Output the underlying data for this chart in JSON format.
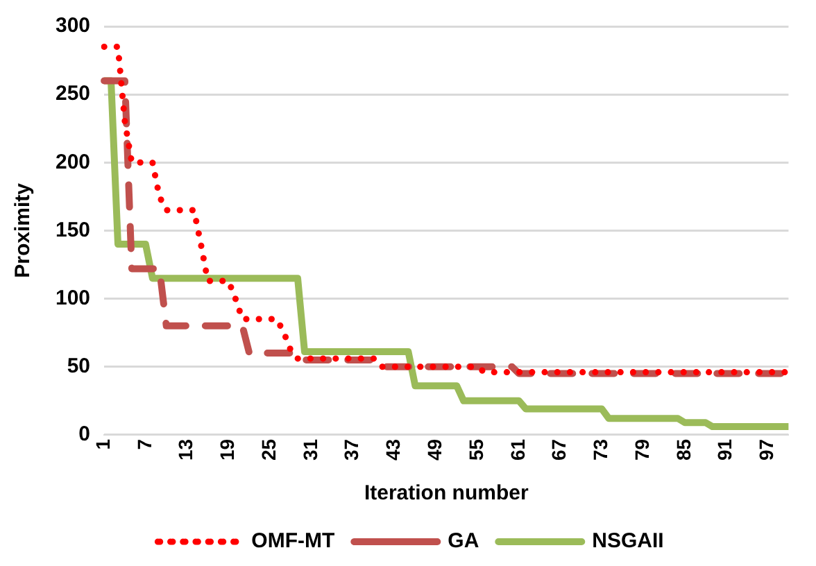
{
  "chart_data": {
    "type": "line",
    "xlabel": "Iteration number",
    "ylabel": "Proximity",
    "categories": [
      "1",
      null,
      null,
      null,
      null,
      null,
      "7",
      null,
      null,
      null,
      null,
      null,
      "13",
      null,
      null,
      null,
      null,
      null,
      "19",
      null,
      null,
      null,
      null,
      null,
      "25",
      null,
      null,
      null,
      null,
      null,
      "31",
      null,
      null,
      null,
      null,
      null,
      "37",
      null,
      null,
      null,
      null,
      null,
      "43",
      null,
      null,
      null,
      null,
      null,
      "49",
      null,
      null,
      null,
      null,
      null,
      "55",
      null,
      null,
      null,
      null,
      null,
      "61",
      null,
      null,
      null,
      null,
      null,
      "67",
      null,
      null,
      null,
      null,
      null,
      "73",
      null,
      null,
      null,
      null,
      null,
      "79",
      null,
      null,
      null,
      null,
      null,
      "85",
      null,
      null,
      null,
      null,
      null,
      "91",
      null,
      null,
      null,
      null,
      null,
      "97",
      null,
      null,
      null
    ],
    "series": [
      {
        "name": "OMF-MT",
        "color": "#ff0000",
        "line_style": "dotted",
        "values": [
          285,
          285,
          285,
          230,
          200,
          200,
          200,
          200,
          175,
          165,
          165,
          165,
          165,
          165,
          140,
          113,
          113,
          113,
          113,
          100,
          85,
          85,
          85,
          85,
          85,
          85,
          75,
          62,
          56,
          56,
          56,
          56,
          56,
          56,
          56,
          56,
          56,
          56,
          56,
          56,
          50,
          50,
          50,
          50,
          50,
          50,
          50,
          50,
          50,
          50,
          50,
          50,
          50,
          50,
          50,
          46,
          46,
          46,
          46,
          46,
          46,
          46,
          46,
          46,
          46,
          46,
          46,
          46,
          46,
          46,
          46,
          46,
          46,
          46,
          46,
          46,
          46,
          46,
          46,
          46,
          46,
          46,
          46,
          46,
          46,
          46,
          46,
          46,
          46,
          46,
          46,
          46,
          46,
          46,
          46,
          46,
          46,
          46,
          46,
          46
        ]
      },
      {
        "name": "GA",
        "color": "#c0504d",
        "line_style": "dashed",
        "values": [
          260,
          260,
          260,
          260,
          122,
          122,
          122,
          122,
          122,
          80,
          80,
          80,
          80,
          80,
          80,
          80,
          80,
          80,
          80,
          80,
          80,
          60,
          60,
          60,
          60,
          60,
          60,
          60,
          55,
          55,
          55,
          55,
          55,
          55,
          55,
          55,
          55,
          55,
          55,
          55,
          50,
          50,
          50,
          50,
          50,
          50,
          50,
          50,
          50,
          50,
          50,
          50,
          50,
          50,
          50,
          50,
          50,
          50,
          50,
          50,
          45,
          45,
          45,
          45,
          45,
          45,
          45,
          45,
          45,
          45,
          45,
          45,
          45,
          45,
          45,
          45,
          45,
          45,
          45,
          45,
          45,
          45,
          45,
          45,
          45,
          45,
          45,
          45,
          45,
          45,
          45,
          45,
          45,
          45,
          45,
          45,
          45,
          45,
          45,
          45
        ]
      },
      {
        "name": "NSGAII",
        "color": "#9bbb59",
        "line_style": "solid",
        "values": [
          260,
          260,
          140,
          140,
          140,
          140,
          140,
          115,
          115,
          115,
          115,
          115,
          115,
          115,
          115,
          115,
          115,
          115,
          115,
          115,
          115,
          115,
          115,
          115,
          115,
          115,
          115,
          115,
          115,
          61,
          61,
          61,
          61,
          61,
          61,
          61,
          61,
          61,
          61,
          61,
          61,
          61,
          61,
          61,
          61,
          36,
          36,
          36,
          36,
          36,
          36,
          36,
          25,
          25,
          25,
          25,
          25,
          25,
          25,
          25,
          25,
          19,
          19,
          19,
          19,
          19,
          19,
          19,
          19,
          19,
          19,
          19,
          19,
          12,
          12,
          12,
          12,
          12,
          12,
          12,
          12,
          12,
          12,
          12,
          9,
          9,
          9,
          9,
          6,
          6,
          6,
          6,
          6,
          6,
          6,
          6,
          6,
          6,
          6,
          6
        ]
      }
    ],
    "ylim": [
      0,
      300
    ],
    "yticks": [
      0,
      50,
      100,
      150,
      200,
      250,
      300
    ],
    "grid": "y",
    "legend": "bottom",
    "marker": "none"
  }
}
